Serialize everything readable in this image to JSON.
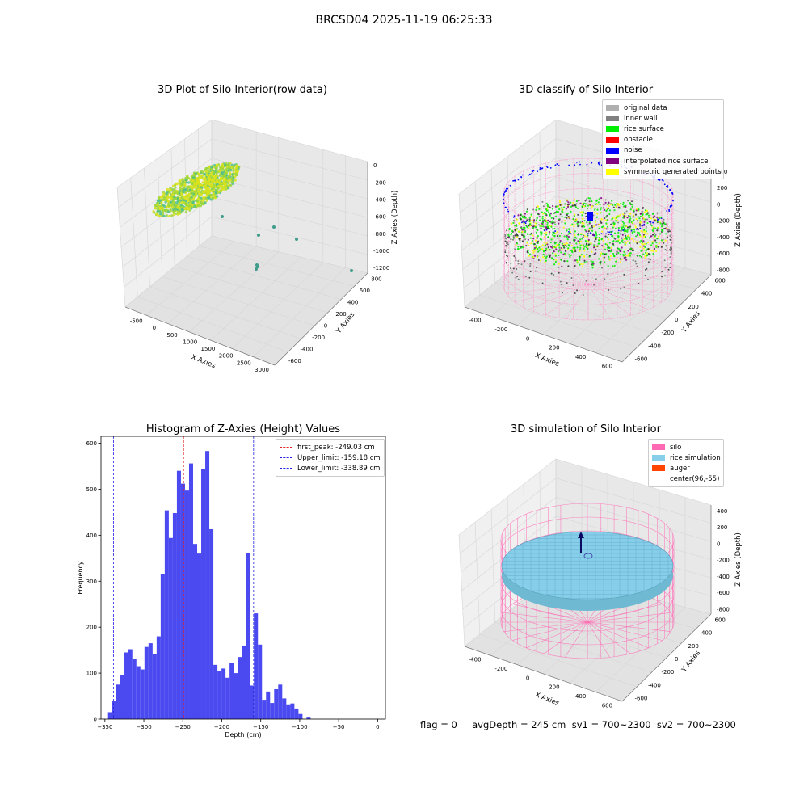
{
  "suptitle": "BRCSD04 2025-11-19 06:25:33",
  "footer": {
    "text": "flag = 0     avgDepth = 245 cm  sv1 = 700~2300  sv2 = 700~2300"
  },
  "chart_data": [
    {
      "type": "scatter",
      "title": "3D Plot of Silo Interior(row data)",
      "xlabel": "X Axies",
      "ylabel": "Y Axies",
      "zlabel": "Z Axies (Depth)",
      "x_ticks": [
        "-500",
        "0",
        "500",
        "1000",
        "1500",
        "2000",
        "2500",
        "3000"
      ],
      "y_ticks": [
        "-600",
        "-400",
        "-200",
        "0",
        "200",
        "400",
        "600",
        "800"
      ],
      "z_ticks": [
        "0",
        "-200",
        "-400",
        "-600",
        "-800",
        "-1000",
        "-1200"
      ],
      "colors": {
        "surface": "#9bd63a",
        "surface_light": "#d8e21c",
        "surface_teal": "#4fbf8a",
        "outlier": "#3f9c8c"
      }
    },
    {
      "type": "scatter",
      "title": "3D classify of Silo Interior",
      "xlabel": "X Axies",
      "ylabel": "Y Axies",
      "zlabel": "Z Axies (Depth)",
      "x_ticks": [
        "-400",
        "-200",
        "0",
        "200",
        "400",
        "600"
      ],
      "y_ticks": [
        "-600",
        "-400",
        "-200",
        "0",
        "200",
        "400",
        "600"
      ],
      "z_ticks": [
        "400",
        "200",
        "0",
        "-200",
        "-400",
        "-600",
        "-800"
      ],
      "legend": [
        {
          "label": "original data",
          "color": "#b0b0b0"
        },
        {
          "label": "inner wall",
          "color": "#808080"
        },
        {
          "label": "rice surface",
          "color": "#00ee00"
        },
        {
          "label": "obstacle",
          "color": "#ff0000"
        },
        {
          "label": "noise",
          "color": "#0000ff"
        },
        {
          "label": "interpolated rice surface",
          "color": "#800080"
        },
        {
          "label": "symmetric generated points",
          "color": "#ffff00"
        }
      ]
    },
    {
      "type": "bar",
      "title": "Histogram of Z-Axies (Height) Values",
      "xlabel": "Depth (cm)",
      "ylabel": "Frequency",
      "xlim": [
        -355,
        10
      ],
      "ylim": [
        0,
        615
      ],
      "x_ticks": [
        -350,
        -300,
        -250,
        -200,
        -150,
        -100,
        -50,
        0
      ],
      "y_ticks": [
        0,
        100,
        200,
        300,
        400,
        500,
        600
      ],
      "bar_color": "#4a4af0",
      "bin_width": 5.2,
      "bin_start": -346,
      "values": [
        15,
        40,
        75,
        95,
        145,
        152,
        130,
        115,
        108,
        157,
        165,
        141,
        180,
        315,
        454,
        394,
        448,
        540,
        512,
        497,
        556,
        381,
        360,
        543,
        583,
        413,
        118,
        104,
        110,
        90,
        122,
        100,
        135,
        160,
        362,
        73,
        230,
        162,
        42,
        60,
        35,
        65,
        75,
        45,
        32,
        34,
        23,
        11,
        0,
        5
      ],
      "vlines": [
        {
          "label": "first_peak: -249.03 cm",
          "x": -249.03,
          "color": "#e02020"
        },
        {
          "label": "Upper_limit: -159.18 cm",
          "x": -159.18,
          "color": "#2020e0"
        },
        {
          "label": "Lower_limit: -338.89 cm",
          "x": -338.89,
          "color": "#2020e0"
        }
      ]
    },
    {
      "type": "scatter",
      "title": "3D simulation of Silo Interior",
      "xlabel": "X Axies",
      "ylabel": "Y Axies",
      "zlabel": "Z Axies (Depth)",
      "x_ticks": [
        "-400",
        "-200",
        "0",
        "200",
        "400",
        "600"
      ],
      "y_ticks": [
        "-600",
        "-400",
        "-200",
        "0",
        "200",
        "400",
        "600"
      ],
      "z_ticks": [
        "400",
        "200",
        "0",
        "-200",
        "-400",
        "-600",
        "-800"
      ],
      "legend": [
        {
          "label": "silo",
          "color": "#ff69b4"
        },
        {
          "label": "rice simulation",
          "color": "#87ceeb"
        },
        {
          "label": "auger",
          "color": "#ff4500"
        },
        {
          "label": "center(96,-55)",
          "color": ""
        }
      ]
    }
  ]
}
